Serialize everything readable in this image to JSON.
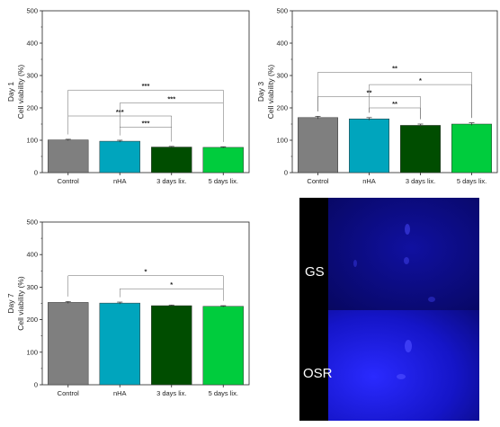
{
  "colors": {
    "control": "#7f7f7f",
    "nha": "#00a5bd",
    "fix3": "#004d00",
    "fix5": "#00cc3d"
  },
  "chart_data": [
    {
      "type": "bar",
      "panel_label": "Day 1",
      "ylabel": "Cell viability (%)",
      "ylim": [
        0,
        500
      ],
      "yticks": [
        "0",
        "100",
        "200",
        "300",
        "400",
        "500"
      ],
      "categories": [
        "Control",
        "nHA",
        "3 days lix.",
        "5 days lix."
      ],
      "values": [
        101,
        97,
        79,
        78
      ],
      "errors": [
        2,
        3,
        2,
        2
      ],
      "grid": false,
      "significance": [
        {
          "from": 1,
          "to": 2,
          "label": "***",
          "y": 140
        },
        {
          "from": 0,
          "to": 2,
          "label": "***",
          "y": 175
        },
        {
          "from": 1,
          "to": 3,
          "label": "***",
          "y": 215
        },
        {
          "from": 0,
          "to": 3,
          "label": "***",
          "y": 255
        }
      ]
    },
    {
      "type": "bar",
      "panel_label": "Day 3",
      "ylabel": "Cell viability (%)",
      "ylim": [
        0,
        500
      ],
      "yticks": [
        "0",
        "100",
        "200",
        "300",
        "400",
        "500"
      ],
      "categories": [
        "Control",
        "nHA",
        "3 days lix.",
        "5 days lix."
      ],
      "values": [
        170,
        166,
        146,
        150
      ],
      "errors": [
        4,
        4,
        4,
        4
      ],
      "grid": false,
      "significance": [
        {
          "from": 1,
          "to": 2,
          "label": "**",
          "y": 200
        },
        {
          "from": 0,
          "to": 2,
          "label": "**",
          "y": 235
        },
        {
          "from": 1,
          "to": 3,
          "label": "*",
          "y": 272
        },
        {
          "from": 0,
          "to": 3,
          "label": "**",
          "y": 310
        }
      ]
    },
    {
      "type": "bar",
      "panel_label": "Day 7",
      "ylabel": "Cell viability (%)",
      "ylim": [
        0,
        500
      ],
      "yticks": [
        "0",
        "100",
        "200",
        "300",
        "400",
        "500"
      ],
      "categories": [
        "Control",
        "nHA",
        "3 days lix.",
        "5 days lix."
      ],
      "values": [
        253,
        251,
        243,
        241
      ],
      "errors": [
        3,
        3,
        2,
        2
      ],
      "grid": false,
      "significance": [
        {
          "from": 1,
          "to": 3,
          "label": "*",
          "y": 295
        },
        {
          "from": 0,
          "to": 3,
          "label": "*",
          "y": 335
        }
      ]
    }
  ],
  "micrographs": [
    {
      "label": "GS"
    },
    {
      "label": "OSR"
    }
  ]
}
